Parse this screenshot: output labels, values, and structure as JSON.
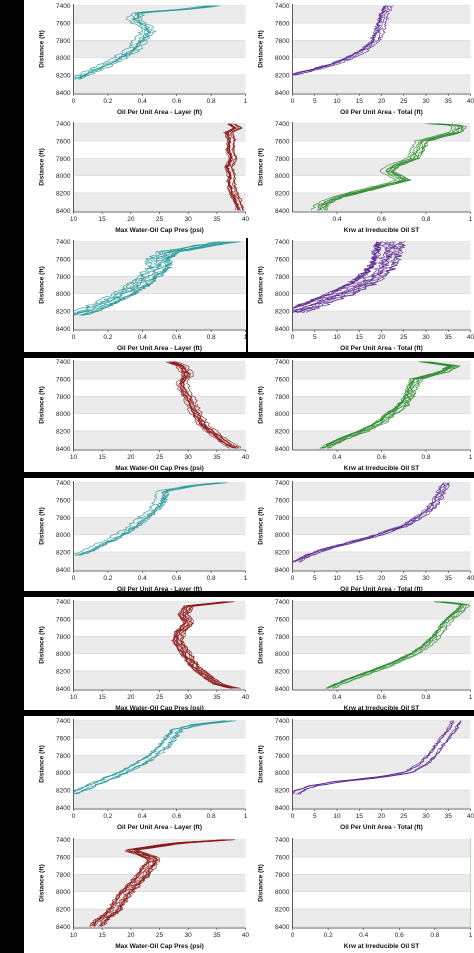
{
  "colors": {
    "teal": "#2a9a9a",
    "purple": "#5b2a91",
    "darkred": "#8b1a1a",
    "green": "#2e8b2e",
    "grid_band": "#ebebeb",
    "frame": "#000000"
  },
  "chart_data": [
    {
      "id": "r1c1",
      "type": "line",
      "xlabel": "Oil Per Unit Area - Layer (ft)",
      "ylabel": "Distance (ft)",
      "xlim": [
        0,
        1
      ],
      "xticks": [
        "0",
        "0.2",
        "0.4",
        "0.6",
        "0.8",
        "1"
      ],
      "ylim": [
        7380,
        8420
      ],
      "yticks": [
        "7400",
        "7600",
        "7800",
        "8000",
        "8200",
        "8400"
      ],
      "color": "teal",
      "series_count": 6,
      "profile": [
        [
          7400,
          0.8
        ],
        [
          7440,
          0.65
        ],
        [
          7480,
          0.36
        ],
        [
          7560,
          0.34
        ],
        [
          7640,
          0.4
        ],
        [
          7700,
          0.42
        ],
        [
          7800,
          0.38
        ],
        [
          7900,
          0.34
        ],
        [
          8000,
          0.26
        ],
        [
          8100,
          0.16
        ],
        [
          8200,
          0.05
        ],
        [
          8250,
          0.0
        ]
      ],
      "spread": 0.05
    },
    {
      "id": "r1c2",
      "type": "line",
      "xlabel": "Oil Per Unit Area - Total (ft)",
      "ylabel": "Distance (ft)",
      "xlim": [
        0,
        40
      ],
      "xticks": [
        "0",
        "5",
        "10",
        "15",
        "20",
        "25",
        "30",
        "35",
        "40"
      ],
      "ylim": [
        7380,
        8420
      ],
      "yticks": [
        "7400",
        "7600",
        "7800",
        "8000",
        "8200",
        "8400"
      ],
      "color": "purple",
      "series_count": 6,
      "profile": [
        [
          7400,
          21.5
        ],
        [
          7500,
          20.5
        ],
        [
          7600,
          20.0
        ],
        [
          7700,
          19.5
        ],
        [
          7800,
          18.6
        ],
        [
          7900,
          16.5
        ],
        [
          8000,
          13.0
        ],
        [
          8080,
          9.0
        ],
        [
          8150,
          4.0
        ],
        [
          8200,
          0.0
        ]
      ],
      "spread": 1.5
    },
    {
      "id": "r2c1",
      "type": "line",
      "xlabel": "Max Water-Oil Cap Pres (psi)",
      "ylabel": "Distance (ft)",
      "xlim": [
        10,
        40
      ],
      "xticks": [
        "10",
        "15",
        "20",
        "25",
        "30",
        "35",
        "40"
      ],
      "ylim": [
        7380,
        8420
      ],
      "yticks": [
        "7400",
        "7600",
        "7800",
        "8000",
        "8200",
        "8400"
      ],
      "color": "darkred",
      "series_count": 10,
      "profile": [
        [
          7400,
          37.5
        ],
        [
          7450,
          38.5
        ],
        [
          7500,
          37.0
        ],
        [
          7600,
          37.5
        ],
        [
          7700,
          37.2
        ],
        [
          7800,
          37.8
        ],
        [
          7900,
          37.0
        ],
        [
          8000,
          37.5
        ],
        [
          8100,
          37.4
        ],
        [
          8200,
          37.8
        ],
        [
          8300,
          38.5
        ],
        [
          8400,
          39.0
        ]
      ],
      "spread": 0.8
    },
    {
      "id": "r2c2",
      "type": "line",
      "xlabel": "Krw at Irreducible Oil ST",
      "ylabel": "Distance (ft)",
      "xlim": [
        0.2,
        1
      ],
      "xticks": [
        "0.4",
        "0.6",
        "0.8",
        "1"
      ],
      "ylim": [
        7380,
        8420
      ],
      "yticks": [
        "7400",
        "7600",
        "7800",
        "8000",
        "8200",
        "8400"
      ],
      "color": "green",
      "series_count": 8,
      "profile": [
        [
          7400,
          0.82
        ],
        [
          7420,
          0.95
        ],
        [
          7500,
          0.93
        ],
        [
          7600,
          0.78
        ],
        [
          7700,
          0.76
        ],
        [
          7800,
          0.74
        ],
        [
          7880,
          0.66
        ],
        [
          7950,
          0.62
        ],
        [
          8050,
          0.7
        ],
        [
          8150,
          0.55
        ],
        [
          8250,
          0.4
        ],
        [
          8330,
          0.33
        ],
        [
          8400,
          0.32
        ]
      ],
      "spread": 0.03
    },
    {
      "id": "r3c1",
      "type": "line",
      "xlabel": "Oil Per Unit Area - Layer (ft)",
      "ylabel": "Distance (ft)",
      "xlim": [
        0,
        1
      ],
      "xticks": [
        "0",
        "0.2",
        "0.4",
        "0.6",
        "0.8",
        "1"
      ],
      "ylim": [
        7380,
        8420
      ],
      "yticks": [
        "7400",
        "7600",
        "7800",
        "8000",
        "8200",
        "8400"
      ],
      "color": "teal",
      "series_count": 10,
      "profile": [
        [
          7400,
          0.9
        ],
        [
          7450,
          0.75
        ],
        [
          7520,
          0.55
        ],
        [
          7600,
          0.5
        ],
        [
          7700,
          0.5
        ],
        [
          7800,
          0.44
        ],
        [
          7900,
          0.38
        ],
        [
          8000,
          0.3
        ],
        [
          8100,
          0.2
        ],
        [
          8200,
          0.08
        ],
        [
          8250,
          0.0
        ]
      ],
      "spread": 0.07
    },
    {
      "id": "r3c2",
      "type": "line",
      "xlabel": "Oil Per Unit Area - Total (ft)",
      "ylabel": "Distance (ft)",
      "xlim": [
        0,
        40
      ],
      "xticks": [
        "0",
        "5",
        "10",
        "15",
        "20",
        "25",
        "30",
        "35",
        "40"
      ],
      "ylim": [
        7380,
        8420
      ],
      "yticks": [
        "7400",
        "7600",
        "7800",
        "8000",
        "8200",
        "8400"
      ],
      "color": "purple",
      "series_count": 12,
      "profile": [
        [
          7400,
          22.0
        ],
        [
          7500,
          21.5
        ],
        [
          7600,
          21.0
        ],
        [
          7700,
          20.0
        ],
        [
          7800,
          18.0
        ],
        [
          7900,
          15.0
        ],
        [
          8000,
          11.0
        ],
        [
          8100,
          6.0
        ],
        [
          8180,
          2.0
        ],
        [
          8220,
          0.0
        ]
      ],
      "spread": 3.0
    },
    {
      "id": "r4c1",
      "type": "line",
      "xlabel": "Max Water-Oil Cap Pres (psi)",
      "ylabel": "Distance (ft)",
      "xlim": [
        10,
        40
      ],
      "xticks": [
        "10",
        "15",
        "20",
        "25",
        "30",
        "35",
        "40"
      ],
      "ylim": [
        7380,
        8420
      ],
      "yticks": [
        "7400",
        "7600",
        "7800",
        "8000",
        "8200",
        "8400"
      ],
      "color": "darkred",
      "series_count": 10,
      "profile": [
        [
          7400,
          27.0
        ],
        [
          7450,
          29.0
        ],
        [
          7550,
          30.0
        ],
        [
          7650,
          29.0
        ],
        [
          7750,
          29.5
        ],
        [
          7850,
          30.5
        ],
        [
          7950,
          31.0
        ],
        [
          8050,
          32.0
        ],
        [
          8150,
          33.0
        ],
        [
          8250,
          35.0
        ],
        [
          8350,
          37.0
        ],
        [
          8400,
          38.5
        ]
      ],
      "spread": 1.0
    },
    {
      "id": "r4c2",
      "type": "line",
      "xlabel": "Krw at Irreducible Oil ST",
      "ylabel": "Distance (ft)",
      "xlim": [
        0.2,
        1
      ],
      "xticks": [
        "0.4",
        "0.6",
        "0.8",
        "1"
      ],
      "ylim": [
        7380,
        8420
      ],
      "yticks": [
        "7400",
        "7600",
        "7800",
        "8000",
        "8200",
        "8400"
      ],
      "color": "green",
      "series_count": 10,
      "profile": [
        [
          7400,
          0.8
        ],
        [
          7450,
          0.93
        ],
        [
          7520,
          0.88
        ],
        [
          7600,
          0.76
        ],
        [
          7700,
          0.74
        ],
        [
          7800,
          0.73
        ],
        [
          7900,
          0.7
        ],
        [
          8000,
          0.65
        ],
        [
          8100,
          0.6
        ],
        [
          8200,
          0.52
        ],
        [
          8300,
          0.42
        ],
        [
          8400,
          0.35
        ]
      ],
      "spread": 0.03
    },
    {
      "id": "r5c1",
      "type": "line",
      "xlabel": "Oil Per Unit Area - Layer (ft)",
      "ylabel": "Distance (ft)",
      "xlim": [
        0,
        1
      ],
      "xticks": [
        "0",
        "0.2",
        "0.4",
        "0.6",
        "0.8",
        "1"
      ],
      "ylim": [
        7380,
        8420
      ],
      "yticks": [
        "7400",
        "7600",
        "7800",
        "8000",
        "8200",
        "8400"
      ],
      "color": "teal",
      "series_count": 6,
      "profile": [
        [
          7400,
          0.85
        ],
        [
          7440,
          0.65
        ],
        [
          7500,
          0.5
        ],
        [
          7600,
          0.5
        ],
        [
          7700,
          0.46
        ],
        [
          7800,
          0.4
        ],
        [
          7900,
          0.34
        ],
        [
          8000,
          0.26
        ],
        [
          8100,
          0.16
        ],
        [
          8200,
          0.06
        ],
        [
          8240,
          0.0
        ]
      ],
      "spread": 0.05
    },
    {
      "id": "r5c2",
      "type": "line",
      "xlabel": "Oil Per Unit Area - Total (ft)",
      "ylabel": "Distance (ft)",
      "xlim": [
        0,
        40
      ],
      "xticks": [
        "0",
        "5",
        "10",
        "15",
        "20",
        "25",
        "30",
        "35",
        "40"
      ],
      "ylim": [
        7380,
        8420
      ],
      "yticks": [
        "7400",
        "7600",
        "7800",
        "8000",
        "8200",
        "8400"
      ],
      "color": "purple",
      "series_count": 6,
      "profile": [
        [
          7400,
          34.0
        ],
        [
          7500,
          33.0
        ],
        [
          7600,
          32.0
        ],
        [
          7700,
          30.5
        ],
        [
          7800,
          28.0
        ],
        [
          7900,
          24.5
        ],
        [
          8000,
          19.0
        ],
        [
          8100,
          12.0
        ],
        [
          8180,
          6.0
        ],
        [
          8260,
          2.0
        ],
        [
          8320,
          0.0
        ]
      ],
      "spread": 1.5
    },
    {
      "id": "r6c1",
      "type": "line",
      "xlabel": "Max Water-Oil Cap Pres (psi)",
      "ylabel": "Distance (ft)",
      "xlim": [
        10,
        40
      ],
      "xticks": [
        "10",
        "15",
        "20",
        "25",
        "30",
        "35",
        "40"
      ],
      "ylim": [
        7380,
        8420
      ],
      "yticks": [
        "7400",
        "7600",
        "7800",
        "8000",
        "8200",
        "8400"
      ],
      "color": "darkred",
      "series_count": 12,
      "profile": [
        [
          7400,
          37.0
        ],
        [
          7450,
          30.0
        ],
        [
          7550,
          29.0
        ],
        [
          7650,
          30.0
        ],
        [
          7750,
          28.5
        ],
        [
          7850,
          28.0
        ],
        [
          7950,
          29.0
        ],
        [
          8050,
          30.0
        ],
        [
          8150,
          31.0
        ],
        [
          8250,
          33.0
        ],
        [
          8350,
          35.0
        ],
        [
          8400,
          38.0
        ]
      ],
      "spread": 1.0
    },
    {
      "id": "r6c2",
      "type": "line",
      "xlabel": "Krw at Irreducible Oil ST",
      "ylabel": "Distance (ft)",
      "xlim": [
        0.2,
        1
      ],
      "xticks": [
        "0.4",
        "0.6",
        "0.8",
        "1"
      ],
      "ylim": [
        7380,
        8420
      ],
      "yticks": [
        "7400",
        "7600",
        "7800",
        "8000",
        "8200",
        "8400"
      ],
      "color": "green",
      "series_count": 8,
      "profile": [
        [
          7400,
          0.85
        ],
        [
          7430,
          0.97
        ],
        [
          7500,
          0.95
        ],
        [
          7600,
          0.9
        ],
        [
          7700,
          0.87
        ],
        [
          7800,
          0.84
        ],
        [
          7900,
          0.8
        ],
        [
          8000,
          0.74
        ],
        [
          8100,
          0.66
        ],
        [
          8200,
          0.56
        ],
        [
          8300,
          0.45
        ],
        [
          8400,
          0.36
        ]
      ],
      "spread": 0.025
    },
    {
      "id": "r7c1",
      "type": "line",
      "xlabel": "Oil Per Unit Area - Layer (ft)",
      "ylabel": "Distance (ft)",
      "xlim": [
        0,
        1
      ],
      "xticks": [
        "0",
        "0.2",
        "0.4",
        "0.6",
        "0.8",
        "1"
      ],
      "ylim": [
        7380,
        8420
      ],
      "yticks": [
        "7400",
        "7600",
        "7800",
        "8000",
        "8200",
        "8400"
      ],
      "color": "teal",
      "series_count": 6,
      "profile": [
        [
          7400,
          0.92
        ],
        [
          7440,
          0.75
        ],
        [
          7500,
          0.62
        ],
        [
          7600,
          0.58
        ],
        [
          7700,
          0.54
        ],
        [
          7800,
          0.48
        ],
        [
          7900,
          0.4
        ],
        [
          8000,
          0.3
        ],
        [
          8100,
          0.18
        ],
        [
          8200,
          0.06
        ],
        [
          8250,
          0.0
        ]
      ],
      "spread": 0.05
    },
    {
      "id": "r7c2",
      "type": "line",
      "xlabel": "Oil Per Unit Area - Total (ft)",
      "ylabel": "Distance (ft)",
      "xlim": [
        0,
        40
      ],
      "xticks": [
        "0",
        "5",
        "10",
        "15",
        "20",
        "25",
        "30",
        "35",
        "40"
      ],
      "ylim": [
        7380,
        8420
      ],
      "yticks": [
        "7400",
        "7600",
        "7800",
        "8000",
        "8200",
        "8400"
      ],
      "color": "purple",
      "series_count": 6,
      "profile": [
        [
          7400,
          37.0
        ],
        [
          7500,
          36.0
        ],
        [
          7600,
          34.5
        ],
        [
          7700,
          33.0
        ],
        [
          7800,
          31.5
        ],
        [
          7900,
          29.5
        ],
        [
          8000,
          26.0
        ],
        [
          8050,
          20.0
        ],
        [
          8100,
          11.0
        ],
        [
          8150,
          5.0
        ],
        [
          8200,
          2.0
        ],
        [
          8250,
          0.5
        ]
      ],
      "spread": 1.2
    },
    {
      "id": "r8c1",
      "type": "line",
      "xlabel": "Max Water-Oil Cap Pres (psi)",
      "ylabel": "Distance (ft)",
      "xlim": [
        10,
        40
      ],
      "xticks": [
        "10",
        "15",
        "20",
        "25",
        "30",
        "35",
        "40"
      ],
      "ylim": [
        7380,
        8420
      ],
      "yticks": [
        "7400",
        "7600",
        "7800",
        "8000",
        "8200",
        "8400"
      ],
      "color": "darkred",
      "series_count": 12,
      "profile": [
        [
          7400,
          37.0
        ],
        [
          7440,
          28.0
        ],
        [
          7520,
          20.0
        ],
        [
          7620,
          24.0
        ],
        [
          7720,
          23.0
        ],
        [
          7820,
          22.0
        ],
        [
          7920,
          20.5
        ],
        [
          8020,
          19.0
        ],
        [
          8120,
          18.0
        ],
        [
          8220,
          17.0
        ],
        [
          8320,
          15.0
        ],
        [
          8400,
          14.0
        ]
      ],
      "spread": 1.2
    },
    {
      "id": "r8c2",
      "type": "line",
      "xlabel": "Krw at Irreducible Oil ST",
      "ylabel": "Distance (ft)",
      "xlim": [
        0,
        1
      ],
      "xticks": [
        "0",
        "0.2",
        "0.4",
        "0.6",
        "0.8",
        "1"
      ],
      "ylim": [
        7380,
        8420
      ],
      "yticks": [
        "7400",
        "7600",
        "7800",
        "8000",
        "8200",
        "8400"
      ],
      "color": "green",
      "series_count": 1,
      "profile": [
        [
          7380,
          1.0
        ],
        [
          8420,
          1.0
        ]
      ],
      "spread": 0.0
    }
  ]
}
